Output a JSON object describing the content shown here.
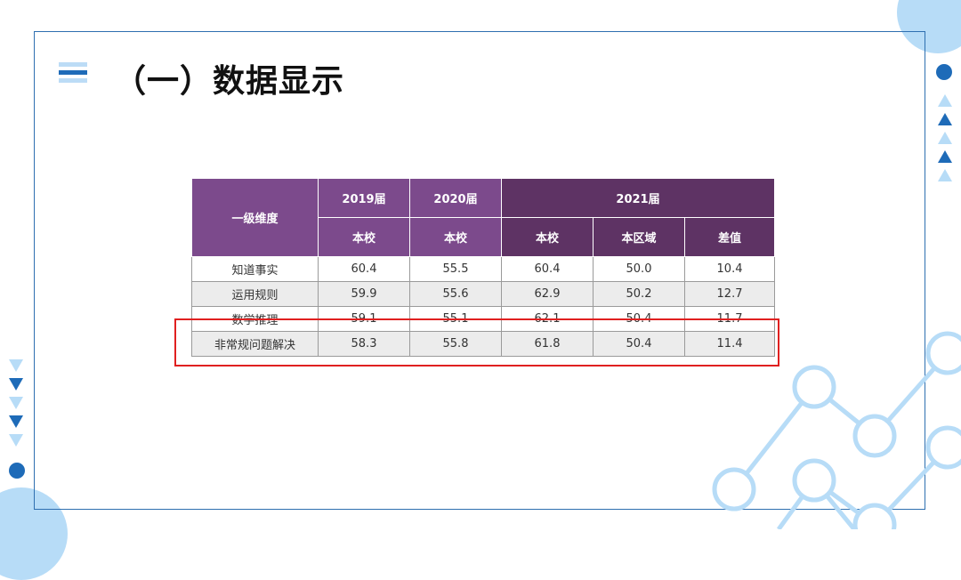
{
  "title": "（一）数据显示",
  "table": {
    "header_dimension": "一级维度",
    "header_years": [
      "2019届",
      "2020届",
      "2021届"
    ],
    "sub_headers": [
      "本校",
      "本校",
      "本校",
      "本区域",
      "差值"
    ],
    "rows": [
      {
        "name": "知道事实",
        "v2019": "60.4",
        "v2020": "55.5",
        "school": "60.4",
        "region": "50.0",
        "diff": "10.4"
      },
      {
        "name": "运用规则",
        "v2019": "59.9",
        "v2020": "55.6",
        "school": "62.9",
        "region": "50.2",
        "diff": "12.7"
      },
      {
        "name": "数学推理",
        "v2019": "59.1",
        "v2020": "55.1",
        "school": "62.1",
        "region": "50.4",
        "diff": "11.7"
      },
      {
        "name": "非常规问题解决",
        "v2019": "58.3",
        "v2020": "55.8",
        "school": "61.8",
        "region": "50.4",
        "diff": "11.4"
      }
    ]
  },
  "colors": {
    "accent_blue": "#1e6bb8",
    "light_blue": "#b7dcf7",
    "header_purple": "#7c4a8c",
    "header_dark_purple": "#5e3364",
    "highlight_red": "#e02020"
  }
}
